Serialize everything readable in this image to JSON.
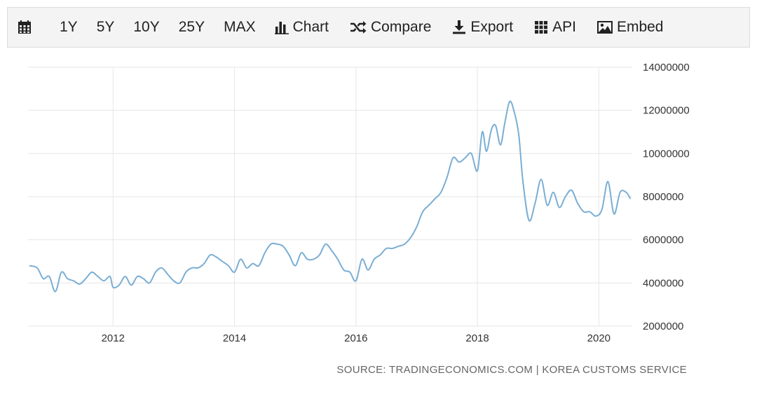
{
  "toolbar": {
    "ranges": [
      "1Y",
      "5Y",
      "10Y",
      "25Y",
      "MAX"
    ],
    "chart_label": "Chart",
    "compare_label": "Compare",
    "export_label": "Export",
    "api_label": "API",
    "embed_label": "Embed",
    "icons": {
      "calendar": "calendar-icon",
      "chart": "bar-chart-icon",
      "compare": "shuffle-icon",
      "export": "download-icon",
      "api": "grid-icon",
      "embed": "image-icon"
    }
  },
  "source": "SOURCE: TRADINGECONOMICS.COM | KOREA CUSTOMS SERVICE",
  "colors": {
    "line": "#7aaed4",
    "grid": "#e6e6e6",
    "toolbar_bg": "#f4f4f4"
  },
  "chart_data": {
    "type": "line",
    "title": "",
    "xlabel": "",
    "ylabel": "",
    "xlim": [
      2010.6,
      2020.55
    ],
    "ylim": [
      2000000,
      14000000
    ],
    "x_ticks": [
      2012,
      2014,
      2016,
      2018,
      2020
    ],
    "x_tick_labels": [
      "2012",
      "2014",
      "2016",
      "2018",
      "2020"
    ],
    "y_ticks": [
      2000000,
      4000000,
      6000000,
      8000000,
      10000000,
      12000000,
      14000000
    ],
    "y_tick_labels": [
      "2000000",
      "4000000",
      "6000000",
      "8000000",
      "10000000",
      "12000000",
      "14000000"
    ],
    "y_axis_position": "right",
    "grid": true,
    "series": [
      {
        "x": [
          2010.62,
          2010.75,
          2010.85,
          2010.95,
          2011.05,
          2011.15,
          2011.25,
          2011.35,
          2011.45,
          2011.55,
          2011.65,
          2011.75,
          2011.85,
          2011.95,
          2012.0,
          2012.1,
          2012.2,
          2012.3,
          2012.4,
          2012.5,
          2012.6,
          2012.7,
          2012.8,
          2012.9,
          2013.0,
          2013.1,
          2013.2,
          2013.3,
          2013.4,
          2013.5,
          2013.6,
          2013.7,
          2013.8,
          2013.9,
          2014.0,
          2014.1,
          2014.2,
          2014.3,
          2014.4,
          2014.5,
          2014.6,
          2014.7,
          2014.8,
          2014.9,
          2015.0,
          2015.1,
          2015.2,
          2015.3,
          2015.4,
          2015.5,
          2015.6,
          2015.7,
          2015.8,
          2015.9,
          2016.0,
          2016.1,
          2016.2,
          2016.3,
          2016.4,
          2016.5,
          2016.6,
          2016.7,
          2016.8,
          2016.9,
          2017.0,
          2017.1,
          2017.2,
          2017.3,
          2017.4,
          2017.5,
          2017.6,
          2017.7,
          2017.8,
          2017.9,
          2018.0,
          2018.08,
          2018.15,
          2018.23,
          2018.3,
          2018.38,
          2018.45,
          2018.53,
          2018.6,
          2018.68,
          2018.75,
          2018.85,
          2018.95,
          2019.05,
          2019.15,
          2019.25,
          2019.35,
          2019.45,
          2019.55,
          2019.65,
          2019.75,
          2019.85,
          2019.95,
          2020.05,
          2020.15,
          2020.25,
          2020.35,
          2020.45,
          2020.52
        ],
        "values": [
          4800000,
          4700000,
          4200000,
          4300000,
          3600000,
          4500000,
          4200000,
          4100000,
          3950000,
          4200000,
          4500000,
          4300000,
          4100000,
          4300000,
          3800000,
          3900000,
          4300000,
          3900000,
          4300000,
          4200000,
          4000000,
          4500000,
          4700000,
          4400000,
          4100000,
          4000000,
          4500000,
          4700000,
          4700000,
          4900000,
          5300000,
          5200000,
          5000000,
          4800000,
          4500000,
          5100000,
          4700000,
          4900000,
          4800000,
          5400000,
          5800000,
          5800000,
          5700000,
          5300000,
          4800000,
          5400000,
          5100000,
          5100000,
          5300000,
          5800000,
          5500000,
          5100000,
          4600000,
          4500000,
          4100000,
          5100000,
          4600000,
          5100000,
          5300000,
          5600000,
          5600000,
          5700000,
          5800000,
          6100000,
          6600000,
          7300000,
          7600000,
          7900000,
          8200000,
          8900000,
          9800000,
          9600000,
          9800000,
          10000000,
          9200000,
          11000000,
          10100000,
          11100000,
          11300000,
          10400000,
          11400000,
          12400000,
          12000000,
          10900000,
          8700000,
          6900000,
          7700000,
          8800000,
          7600000,
          8200000,
          7500000,
          8000000,
          8300000,
          7700000,
          7300000,
          7300000,
          7100000,
          7400000,
          8700000,
          7200000,
          8200000,
          8200000,
          7900000
        ]
      }
    ]
  }
}
